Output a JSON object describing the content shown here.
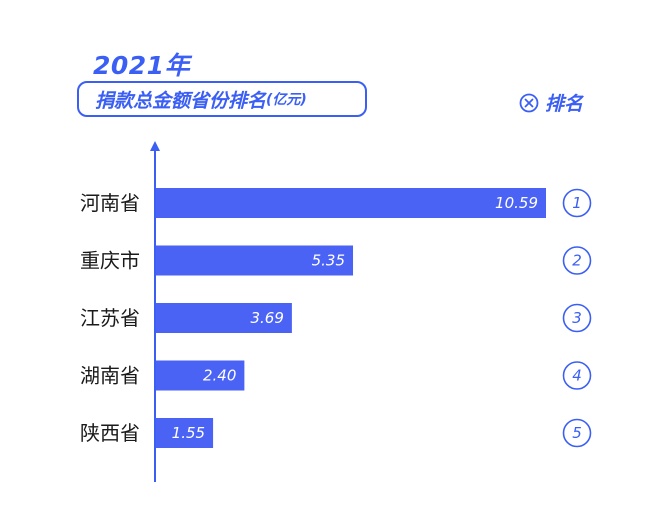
{
  "header": {
    "year": "2021年",
    "subtitle": "捐款总金额省份排名",
    "unit": "(亿元)"
  },
  "legend": {
    "icon": "circle-x-icon",
    "label": "排名"
  },
  "colors": {
    "accent": "#3b5ff5",
    "bar": "#4a63f5"
  },
  "chart_data": {
    "type": "bar",
    "orientation": "horizontal",
    "title": "捐款总金额省份排名(亿元)",
    "categories": [
      "河南省",
      "重庆市",
      "江苏省",
      "湖南省",
      "陕西省"
    ],
    "values": [
      10.59,
      5.35,
      3.69,
      2.4,
      1.55
    ],
    "value_labels": [
      "10.59",
      "5.35",
      "3.69",
      "2.40",
      "1.55"
    ],
    "ranks": [
      "1",
      "2",
      "3",
      "4",
      "5"
    ],
    "xlim": [
      0,
      10.59
    ],
    "grid": false
  }
}
